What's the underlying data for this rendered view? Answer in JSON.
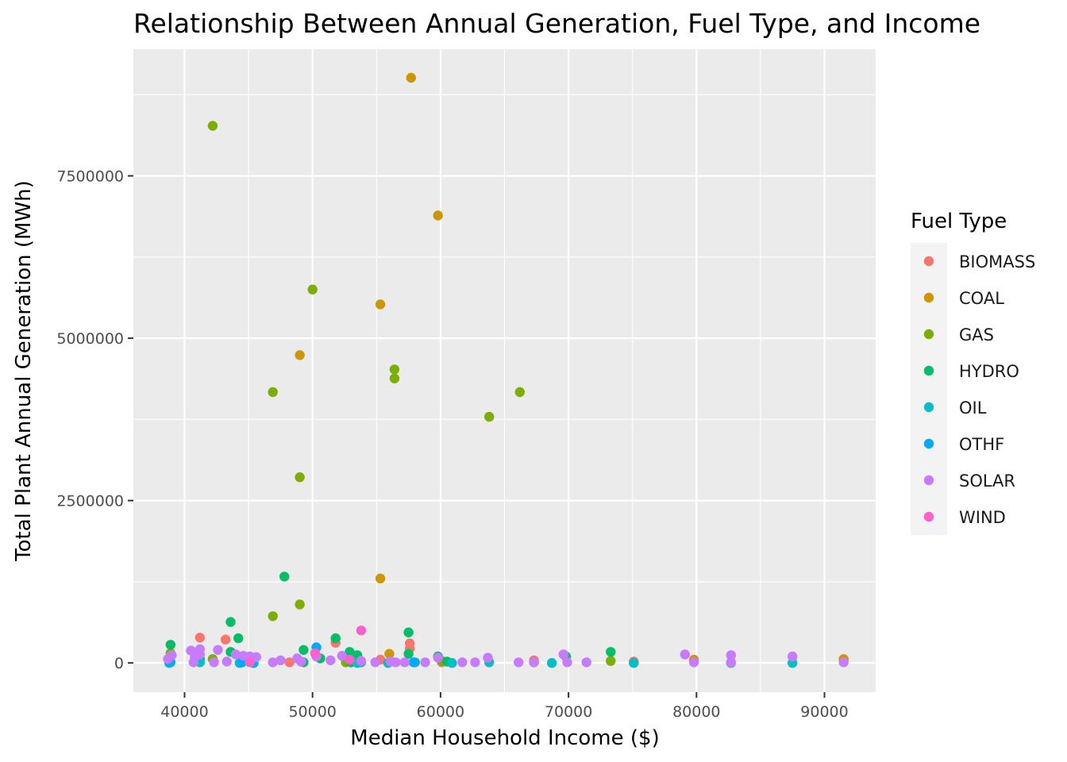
{
  "chart_data": {
    "type": "scatter",
    "title": "Relationship Between Annual Generation, Fuel Type, and Income",
    "xlabel": "Median Household Income ($)",
    "ylabel": "Total Plant Annual Generation (MWh)",
    "xlim": [
      36000,
      94000
    ],
    "ylim": [
      -450000,
      9450000
    ],
    "x_ticks": [
      40000,
      50000,
      60000,
      70000,
      80000,
      90000
    ],
    "x_tick_labels": [
      "40000",
      "50000",
      "60000",
      "70000",
      "80000",
      "90000"
    ],
    "y_ticks": [
      0,
      2500000,
      5000000,
      7500000
    ],
    "y_tick_labels": [
      "0",
      "2500000",
      "5000000",
      "7500000"
    ],
    "grid": true,
    "legend": {
      "title": "Fuel Type",
      "position": "right"
    },
    "series": [
      {
        "name": "BIOMASS",
        "color": "#F8766D",
        "points": [
          [
            41200,
            390000
          ],
          [
            43200,
            360000
          ],
          [
            51800,
            310000
          ],
          [
            57600,
            300000
          ],
          [
            57600,
            220000
          ],
          [
            52900,
            60000
          ],
          [
            48200,
            10000
          ],
          [
            55300,
            50000
          ],
          [
            67300,
            40000
          ],
          [
            75100,
            20000
          ],
          [
            79800,
            30000
          ],
          [
            91500,
            40000
          ],
          [
            44500,
            20000
          ],
          [
            60100,
            10000
          ]
        ]
      },
      {
        "name": "COAL",
        "color": "#CD9600",
        "points": [
          [
            57700,
            9010000
          ],
          [
            59800,
            6890000
          ],
          [
            55300,
            5520000
          ],
          [
            49000,
            4740000
          ],
          [
            55300,
            1300000
          ],
          [
            56000,
            140000
          ],
          [
            79800,
            50000
          ],
          [
            91500,
            60000
          ],
          [
            52900,
            30000
          ],
          [
            67300,
            10000
          ]
        ]
      },
      {
        "name": "GAS",
        "color": "#7CAE00",
        "points": [
          [
            42200,
            8270000
          ],
          [
            50000,
            5750000
          ],
          [
            56400,
            4520000
          ],
          [
            56400,
            4380000
          ],
          [
            46900,
            4170000
          ],
          [
            66200,
            4170000
          ],
          [
            63800,
            3790000
          ],
          [
            49000,
            2860000
          ],
          [
            49000,
            900000
          ],
          [
            46900,
            720000
          ],
          [
            52600,
            10000
          ],
          [
            73300,
            30000
          ],
          [
            38900,
            150000
          ],
          [
            42200,
            60000
          ],
          [
            60100,
            30000
          ]
        ]
      },
      {
        "name": "HYDRO",
        "color": "#00BE67",
        "points": [
          [
            47800,
            1330000
          ],
          [
            43600,
            630000
          ],
          [
            44200,
            380000
          ],
          [
            51800,
            380000
          ],
          [
            57500,
            470000
          ],
          [
            38900,
            280000
          ],
          [
            49300,
            200000
          ],
          [
            52900,
            170000
          ],
          [
            53500,
            120000
          ],
          [
            43600,
            170000
          ],
          [
            57500,
            140000
          ],
          [
            59800,
            100000
          ],
          [
            69800,
            100000
          ],
          [
            73300,
            170000
          ],
          [
            50600,
            70000
          ],
          [
            49300,
            10000
          ],
          [
            58000,
            10000
          ],
          [
            53000,
            10000
          ],
          [
            60500,
            20000
          ],
          [
            41200,
            60000
          ],
          [
            45200,
            50000
          ]
        ]
      },
      {
        "name": "OIL",
        "color": "#00BFC4",
        "points": [
          [
            38800,
            0
          ],
          [
            44300,
            0
          ],
          [
            53500,
            0
          ],
          [
            60900,
            0
          ],
          [
            68700,
            0
          ],
          [
            75100,
            0
          ],
          [
            82700,
            0
          ],
          [
            87500,
            0
          ],
          [
            41200,
            10000
          ],
          [
            55900,
            0
          ],
          [
            63800,
            10000
          ]
        ]
      },
      {
        "name": "OTHF",
        "color": "#00A9FF",
        "points": [
          [
            50300,
            240000
          ],
          [
            44500,
            10000
          ],
          [
            38900,
            10000
          ],
          [
            45400,
            0
          ],
          [
            53800,
            10000
          ],
          [
            57900,
            10000
          ]
        ]
      },
      {
        "name": "SOLAR",
        "color": "#C77CFF",
        "points": [
          [
            40500,
            190000
          ],
          [
            41200,
            210000
          ],
          [
            42600,
            200000
          ],
          [
            39000,
            120000
          ],
          [
            40800,
            90000
          ],
          [
            41200,
            130000
          ],
          [
            44000,
            130000
          ],
          [
            44600,
            110000
          ],
          [
            45100,
            100000
          ],
          [
            45600,
            90000
          ],
          [
            47500,
            40000
          ],
          [
            48800,
            70000
          ],
          [
            50300,
            100000
          ],
          [
            51400,
            40000
          ],
          [
            52300,
            110000
          ],
          [
            54900,
            10000
          ],
          [
            56100,
            20000
          ],
          [
            57200,
            10000
          ],
          [
            58800,
            10000
          ],
          [
            59800,
            80000
          ],
          [
            61700,
            10000
          ],
          [
            62700,
            10000
          ],
          [
            63700,
            80000
          ],
          [
            66100,
            10000
          ],
          [
            69600,
            130000
          ],
          [
            71400,
            10000
          ],
          [
            79100,
            130000
          ],
          [
            82700,
            120000
          ],
          [
            87500,
            100000
          ],
          [
            91500,
            10000
          ],
          [
            38700,
            60000
          ],
          [
            40700,
            10000
          ],
          [
            42300,
            10000
          ],
          [
            43300,
            20000
          ],
          [
            46900,
            10000
          ],
          [
            49100,
            20000
          ],
          [
            53800,
            30000
          ],
          [
            56500,
            10000
          ],
          [
            67300,
            10000
          ],
          [
            69900,
            10000
          ],
          [
            79800,
            10000
          ],
          [
            82700,
            10000
          ]
        ]
      },
      {
        "name": "WIND",
        "color": "#FF61CC",
        "points": [
          [
            53800,
            500000
          ],
          [
            50200,
            150000
          ],
          [
            52900,
            50000
          ],
          [
            45100,
            10000
          ]
        ]
      }
    ]
  }
}
